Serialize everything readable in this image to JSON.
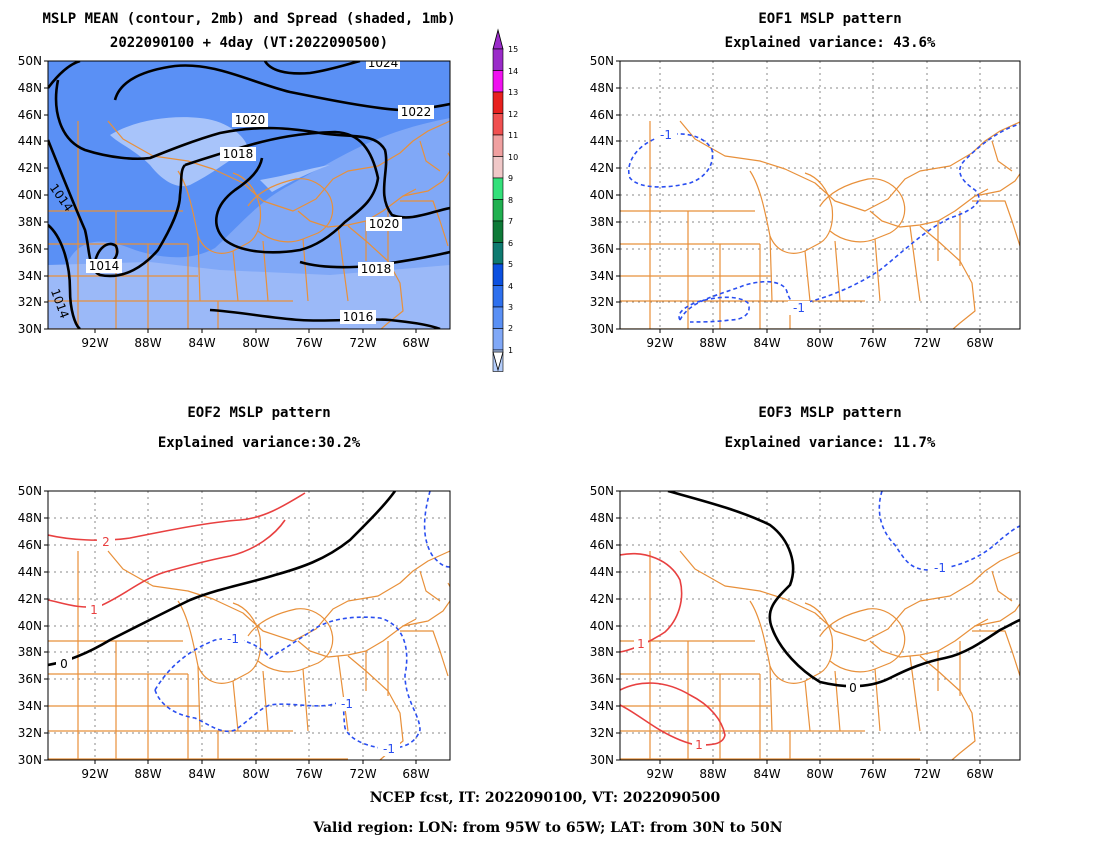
{
  "panels": [
    {
      "id": "mslp",
      "title_lines": [
        "MSLP MEAN (contour, 2mb) and Spread (shaded, 1mb)",
        "2022090100 + 4day (VT:2022090500)"
      ],
      "contour_labels": [
        "1024",
        "1022",
        "1020",
        "1018",
        "1014",
        "1020",
        "1018",
        "1016",
        "1014",
        "1014"
      ]
    },
    {
      "id": "eof1",
      "title_lines": [
        "EOF1 MSLP pattern",
        "Explained variance: 43.6%"
      ],
      "contour_labels": [
        "-1",
        "-1"
      ]
    },
    {
      "id": "eof2",
      "title_lines": [
        "EOF2 MSLP pattern",
        "Explained variance:30.2%"
      ],
      "contour_labels": [
        "2",
        "1",
        "0",
        "-1",
        "-1",
        "-1"
      ]
    },
    {
      "id": "eof3",
      "title_lines": [
        "EOF3 MSLP pattern",
        "Explained variance: 11.7%"
      ],
      "contour_labels": [
        "1",
        "1",
        "0",
        "-1"
      ]
    }
  ],
  "lat_ticks": [
    "50N",
    "48N",
    "46N",
    "44N",
    "42N",
    "40N",
    "38N",
    "36N",
    "34N",
    "32N",
    "30N"
  ],
  "lon_ticks": [
    "92W",
    "88W",
    "84W",
    "80W",
    "76W",
    "72W",
    "68W"
  ],
  "colorbar": {
    "labels": [
      "15",
      "14",
      "13",
      "12",
      "11",
      "10",
      "9",
      "8",
      "7",
      "6",
      "5",
      "4",
      "3",
      "2",
      "1"
    ],
    "colors": [
      "#9a2bc9",
      "#f011f0",
      "#e8201e",
      "#f05050",
      "#f0a0a0",
      "#f0c8c8",
      "#33e07a",
      "#20b050",
      "#0e7a38",
      "#0e7a70",
      "#0b50e0",
      "#2e70ee",
      "#5a90f5",
      "#80a8f7",
      "#b4cdfb"
    ]
  },
  "footer": [
    "NCEP fcst, IT: 2022090100, VT: 2022090500",
    "Valid region: LON: from 95W to 65W; LAT: from 30N to 50N"
  ]
}
